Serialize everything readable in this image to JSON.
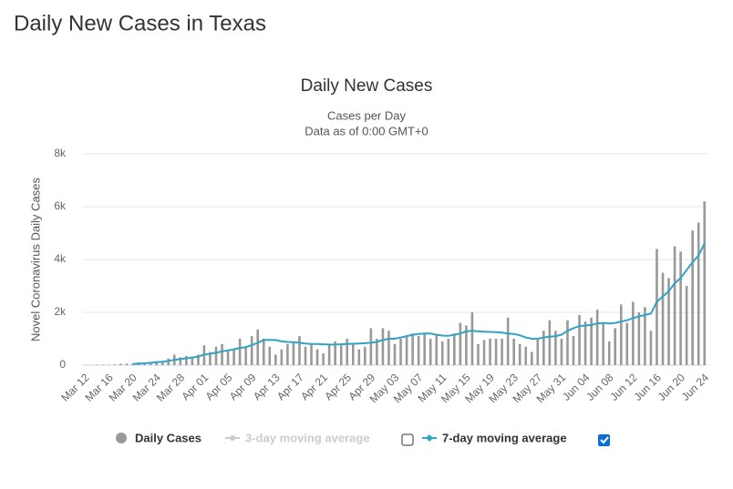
{
  "page_title": "Daily New Cases in Texas",
  "chart_data": {
    "type": "bar",
    "title": "Daily New Cases",
    "subtitle": [
      "Cases per Day",
      "Data as of 0:00 GMT+0"
    ],
    "y_label": "Novel Coronavirus Daily Cases",
    "ylim": [
      0,
      8000
    ],
    "yticks": [
      0,
      {
        "value": 2000,
        "label": "2k"
      },
      {
        "value": 4000,
        "label": "4k"
      },
      {
        "value": 6000,
        "label": "6k"
      },
      {
        "value": 8000,
        "label": "8k"
      }
    ],
    "grid": true,
    "categories": [
      "Mar 12",
      null,
      null,
      null,
      "Mar 16",
      null,
      null,
      null,
      "Mar 20",
      null,
      null,
      null,
      "Mar 24",
      null,
      null,
      null,
      "Mar 28",
      null,
      null,
      null,
      "Apr 01",
      null,
      null,
      null,
      "Apr 05",
      null,
      null,
      null,
      "Apr 09",
      null,
      null,
      null,
      "Apr 13",
      null,
      null,
      null,
      "Apr 17",
      null,
      null,
      null,
      "Apr 21",
      null,
      null,
      null,
      "Apr 25",
      null,
      null,
      null,
      "Apr 29",
      null,
      null,
      null,
      "May 03",
      null,
      null,
      null,
      "May 07",
      null,
      null,
      null,
      "May 11",
      null,
      null,
      null,
      "May 15",
      null,
      null,
      null,
      "May 19",
      null,
      null,
      null,
      "May 23",
      null,
      null,
      null,
      "May 27",
      null,
      null,
      null,
      "May 31",
      null,
      null,
      null,
      "Jun 04",
      null,
      null,
      null,
      "Jun 08",
      null,
      null,
      null,
      "Jun 12",
      null,
      null,
      null,
      "Jun 16",
      null,
      null,
      null,
      "Jun 20",
      null,
      null,
      null,
      "Jun 24"
    ],
    "series": [
      {
        "name": "Daily Cases",
        "color": "#999999",
        "values": [
          3,
          10,
          15,
          20,
          15,
          30,
          50,
          60,
          50,
          100,
          90,
          100,
          150,
          150,
          250,
          400,
          300,
          350,
          300,
          400,
          750,
          500,
          700,
          800,
          550,
          600,
          1000,
          700,
          1100,
          1350,
          1000,
          700,
          400,
          600,
          800,
          900,
          1100,
          700,
          800,
          600,
          450,
          800,
          900,
          750,
          1000,
          800,
          600,
          700,
          1400,
          1000,
          1400,
          1300,
          800,
          1000,
          1100,
          1200,
          1100,
          1200,
          1000,
          1150,
          900,
          1000,
          1200,
          1600,
          1500,
          2000,
          800,
          950,
          1000,
          1000,
          1000,
          1800,
          1000,
          800,
          700,
          500,
          1000,
          1300,
          1700,
          1300,
          1000,
          1700,
          1100,
          1900,
          1650,
          1800,
          2100,
          1600,
          900,
          1400,
          2300,
          1600,
          2400,
          2000,
          2200,
          1300,
          4400,
          3500,
          3300,
          4500,
          4300,
          3000,
          5100,
          5400,
          6200
        ]
      },
      {
        "name": "7-day moving average",
        "color": "#33a3c4",
        "type": "line",
        "values": [
          null,
          null,
          null,
          null,
          null,
          null,
          null,
          null,
          50,
          60,
          70,
          90,
          110,
          130,
          160,
          200,
          230,
          260,
          290,
          320,
          400,
          430,
          470,
          520,
          560,
          600,
          650,
          680,
          760,
          850,
          950,
          960,
          950,
          900,
          880,
          870,
          850,
          820,
          800,
          800,
          790,
          780,
          780,
          790,
          800,
          810,
          820,
          830,
          850,
          880,
          950,
          1000,
          1000,
          1050,
          1100,
          1150,
          1180,
          1200,
          1200,
          1150,
          1120,
          1110,
          1150,
          1200,
          1280,
          1300,
          1280,
          1270,
          1260,
          1250,
          1230,
          1200,
          1180,
          1130,
          1050,
          1000,
          1000,
          1050,
          1080,
          1100,
          1150,
          1300,
          1400,
          1480,
          1500,
          1520,
          1580,
          1600,
          1580,
          1600,
          1650,
          1700,
          1780,
          1850,
          1900,
          1950,
          2400,
          2600,
          2800,
          3100,
          3300,
          3600,
          3900,
          4150,
          4600
        ]
      }
    ],
    "hidden_legend": "3-day moving average"
  }
}
